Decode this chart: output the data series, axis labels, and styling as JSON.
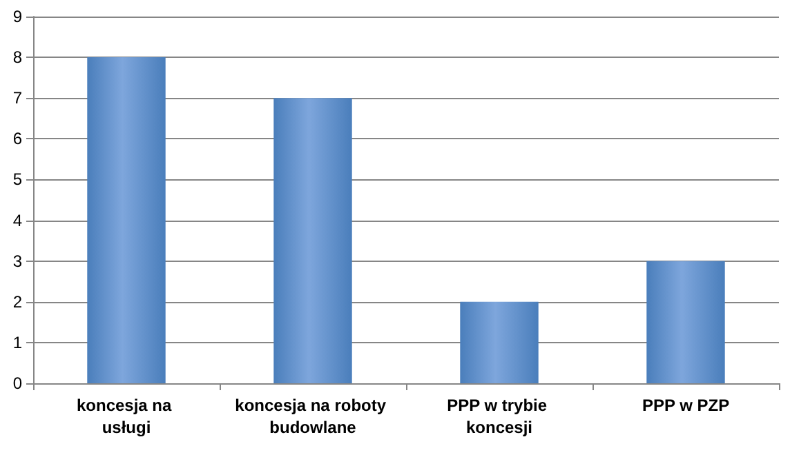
{
  "chart_data": {
    "type": "bar",
    "categories": [
      "koncesja na usługi",
      "koncesja na roboty budowlane",
      "PPP w trybie koncesji",
      "PPP w PZP"
    ],
    "values": [
      8,
      7,
      2,
      3
    ],
    "color": "#4a7ebb",
    "ylim": [
      0,
      9
    ],
    "yticks": [
      0,
      1,
      2,
      3,
      4,
      5,
      6,
      7,
      8,
      9
    ],
    "grid": "y"
  }
}
